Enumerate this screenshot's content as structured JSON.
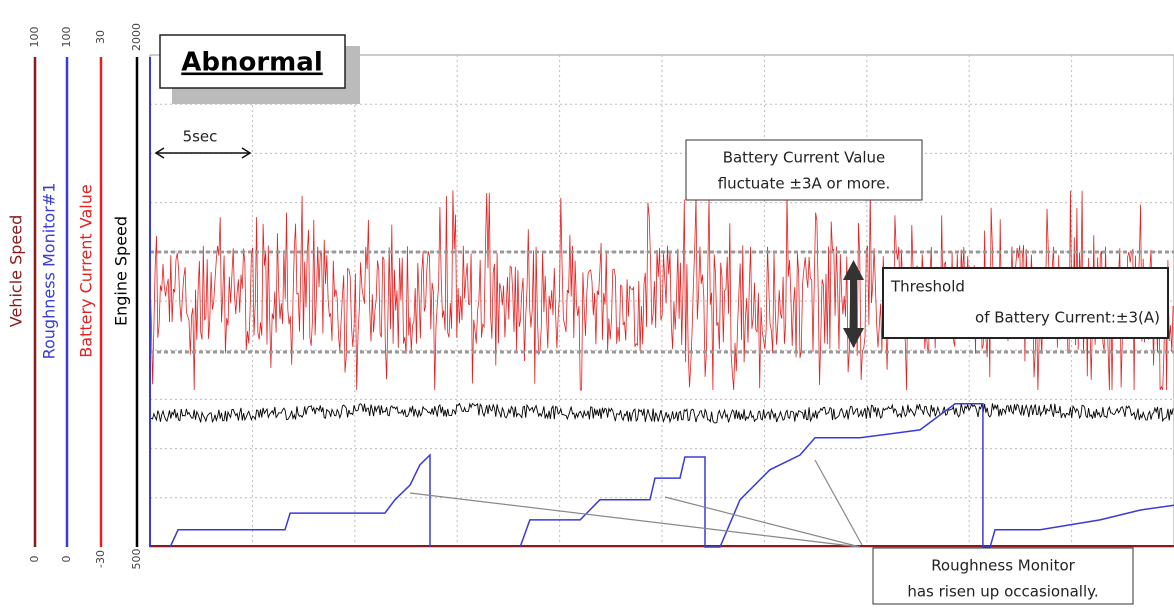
{
  "chart_data": {
    "type": "multi-axis-trace",
    "title": "Abnormal",
    "time_scale_label": "5sec",
    "xlim": [
      0,
      50
    ],
    "axes": [
      {
        "name": "Vehicle Speed",
        "color": "#8b1a1a",
        "ticks": [
          0,
          100
        ]
      },
      {
        "name": "Roughness Monitor#1",
        "color": "#3a3ad8",
        "ticks": [
          0,
          100
        ]
      },
      {
        "name": "Battery Current Value",
        "color": "#e52020",
        "ticks": [
          -30,
          30
        ]
      },
      {
        "name": "Engine Speed",
        "color": "#000000",
        "ticks": [
          500,
          2000
        ]
      }
    ],
    "roughness_monitor": {
      "x": [
        0.98,
        1.37,
        6.59,
        6.84,
        11.47,
        11.96,
        12.7,
        13.18,
        13.67,
        13.67,
        null,
        18.07,
        18.55,
        21.0,
        21.97,
        24.41,
        24.66,
        25.88,
        26.12,
        27.1,
        27.1,
        27.83,
        28.81,
        30.27,
        31.74,
        32.47,
        34.67,
        37.6,
        39.31,
        40.67,
        40.67,
        41.02,
        41.26,
        43.46,
        46.39,
        48.34,
        50
      ],
      "values": [
        0,
        3.5,
        3.5,
        6.9,
        6.9,
        9.6,
        12.6,
        16.7,
        18.7,
        0,
        null,
        0,
        5.5,
        5.5,
        9.6,
        9.6,
        14.0,
        14.0,
        18.3,
        18.3,
        0,
        0,
        9.6,
        15.7,
        18.7,
        22.2,
        22.2,
        23.8,
        29.1,
        29.1,
        0,
        0,
        3.5,
        3.5,
        5.5,
        7.5,
        8.5
      ]
    },
    "annotations": {
      "battery_note": [
        "Battery Current Value",
        "fluctuate ±3A or more."
      ],
      "threshold_note": [
        "Threshold",
        "of Battery Current:±3(A)"
      ],
      "roughness_note": [
        "Roughness Monitor",
        "has risen up occasionally."
      ]
    }
  }
}
